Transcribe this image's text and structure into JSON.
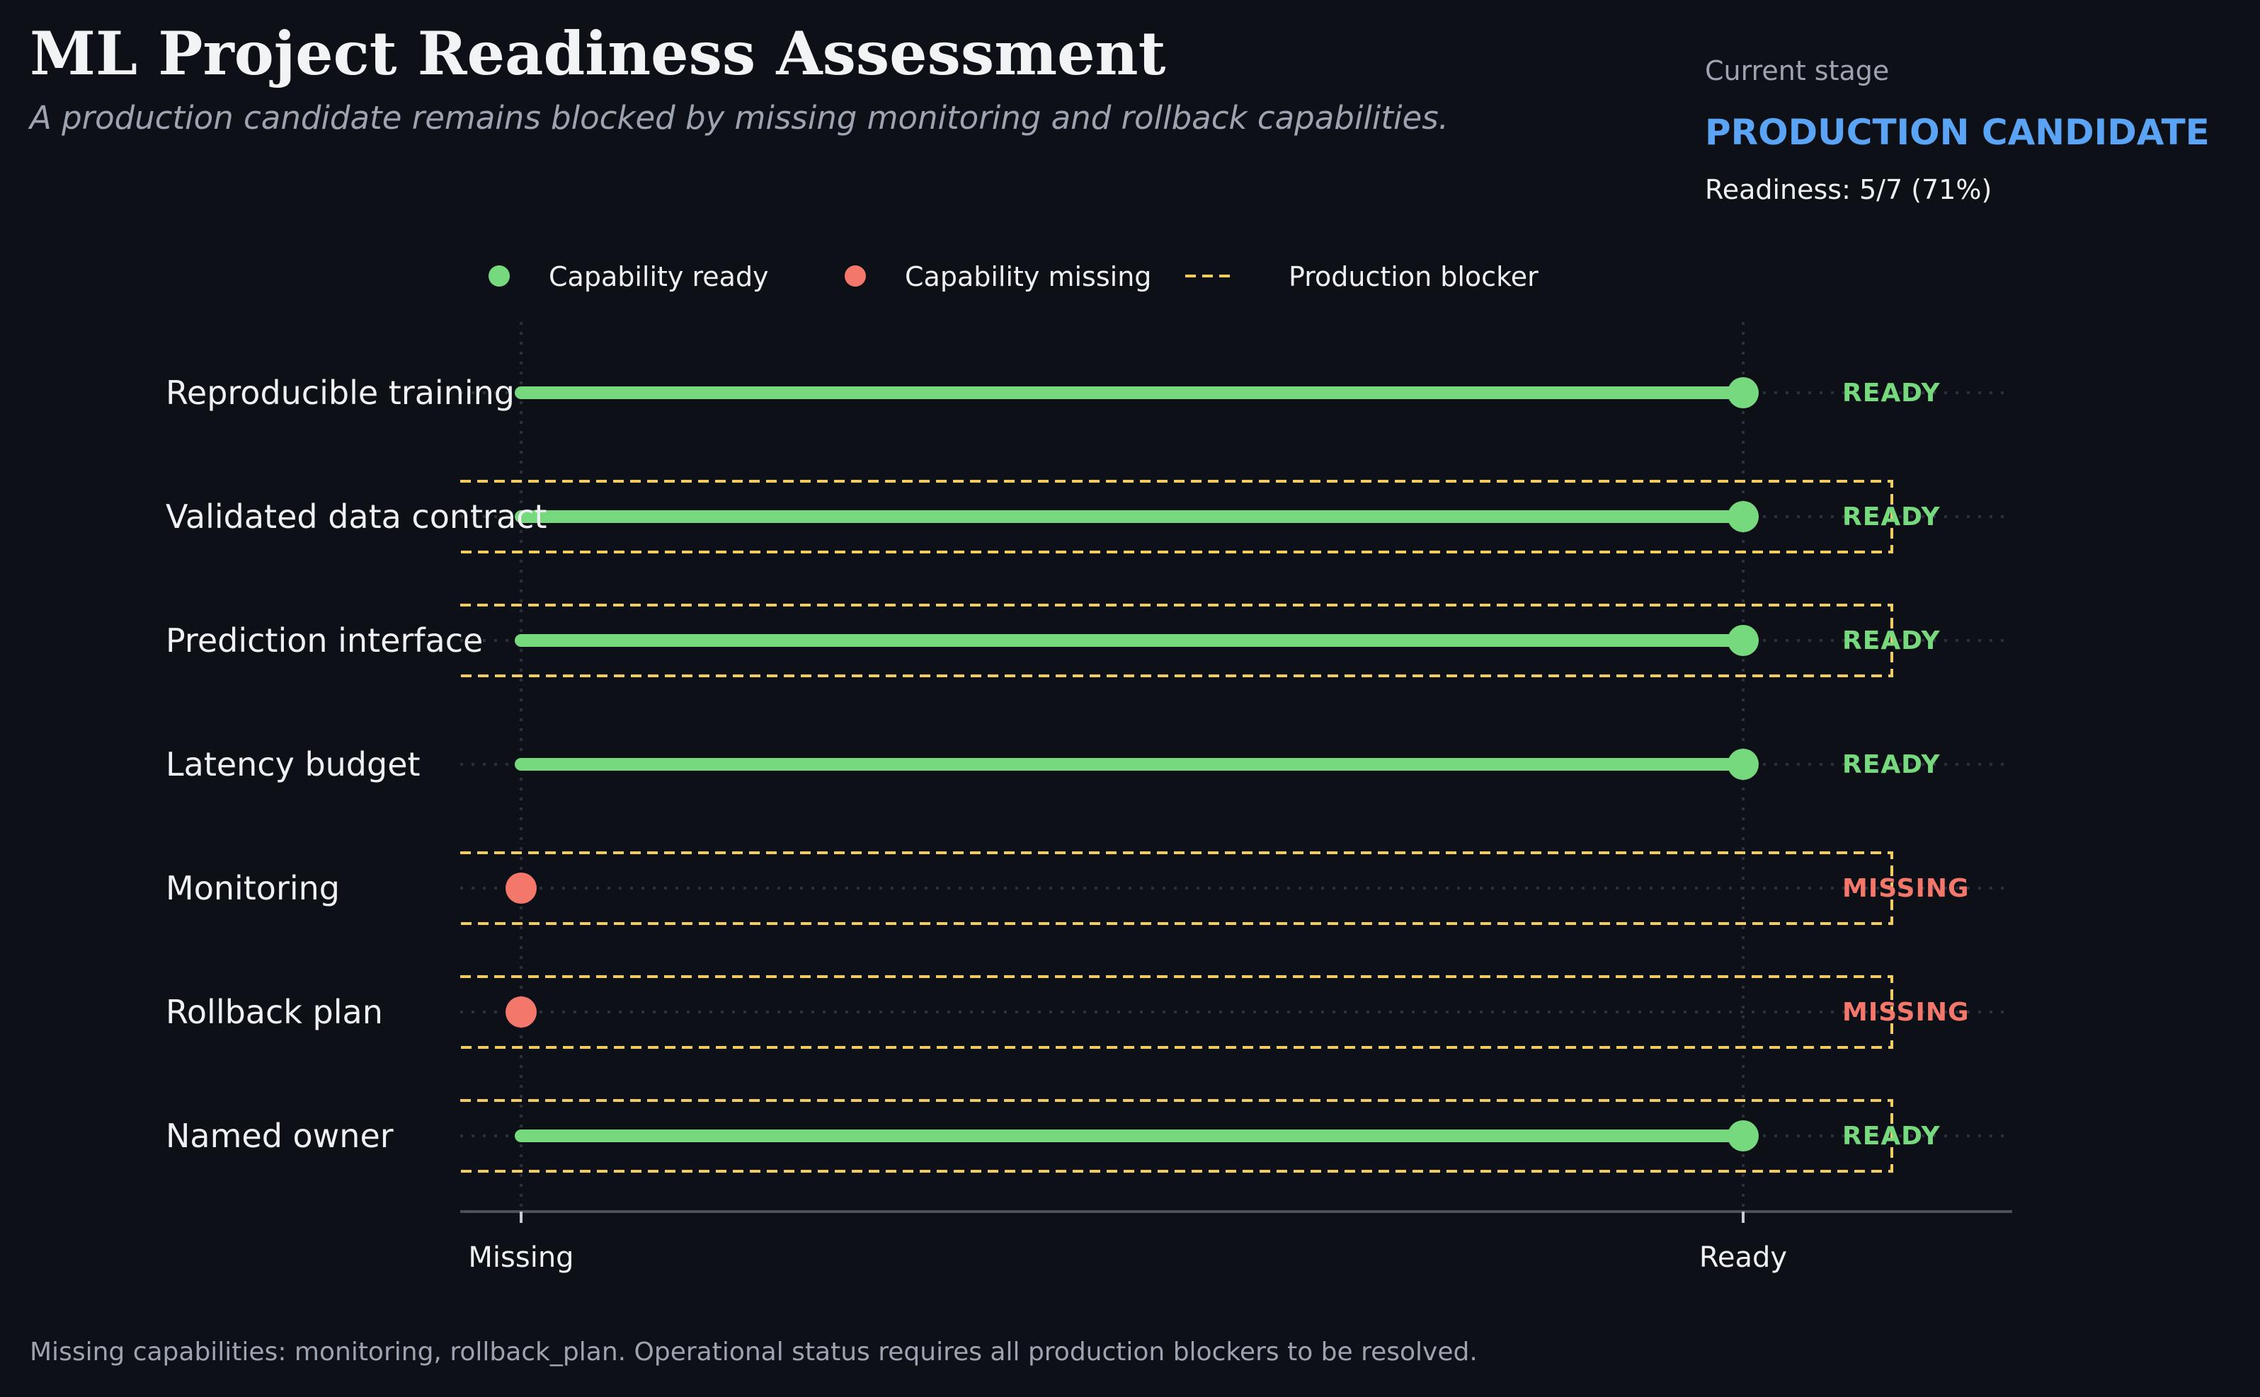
{
  "header": {
    "title": "ML Project Readiness Assessment",
    "subtitle": "A production candidate remains blocked by missing monitoring and rollback capabilities."
  },
  "stage": {
    "label": "Current stage",
    "value": "PRODUCTION CANDIDATE",
    "readiness": "Readiness: 5/7 (71%)"
  },
  "footnote": "Missing capabilities: monitoring, rollback_plan. Operational status requires all production blockers to be resolved.",
  "colors": {
    "background": "#0d1017",
    "ready": "#77d97e",
    "missing": "#f4776b",
    "blocker": "#f2cc5e",
    "stage_accent": "#5aa3f5",
    "grid": "#2b303b",
    "axis": "#4a4f5a"
  },
  "chart_data": {
    "type": "dumbbell",
    "x_tick_labels": [
      "Missing",
      "Ready"
    ],
    "legend": {
      "placement": "top",
      "entries": [
        {
          "label": "Capability ready",
          "marker": "dot",
          "color": "#77d97e"
        },
        {
          "label": "Capability missing",
          "marker": "dot",
          "color": "#f4776b"
        },
        {
          "label": "Production blocker",
          "marker": "dashed-line",
          "color": "#f2cc5e"
        }
      ]
    },
    "rows": [
      {
        "label": "Reproducible training",
        "value": 1,
        "status": "READY",
        "blocker": false
      },
      {
        "label": "Validated data contract",
        "value": 1,
        "status": "READY",
        "blocker": true
      },
      {
        "label": "Prediction interface",
        "value": 1,
        "status": "READY",
        "blocker": true
      },
      {
        "label": "Latency budget",
        "value": 1,
        "status": "READY",
        "blocker": false
      },
      {
        "label": "Monitoring",
        "value": 0,
        "status": "MISSING",
        "blocker": true
      },
      {
        "label": "Rollback plan",
        "value": 0,
        "status": "MISSING",
        "blocker": true
      },
      {
        "label": "Named owner",
        "value": 1,
        "status": "READY",
        "blocker": true
      }
    ]
  }
}
